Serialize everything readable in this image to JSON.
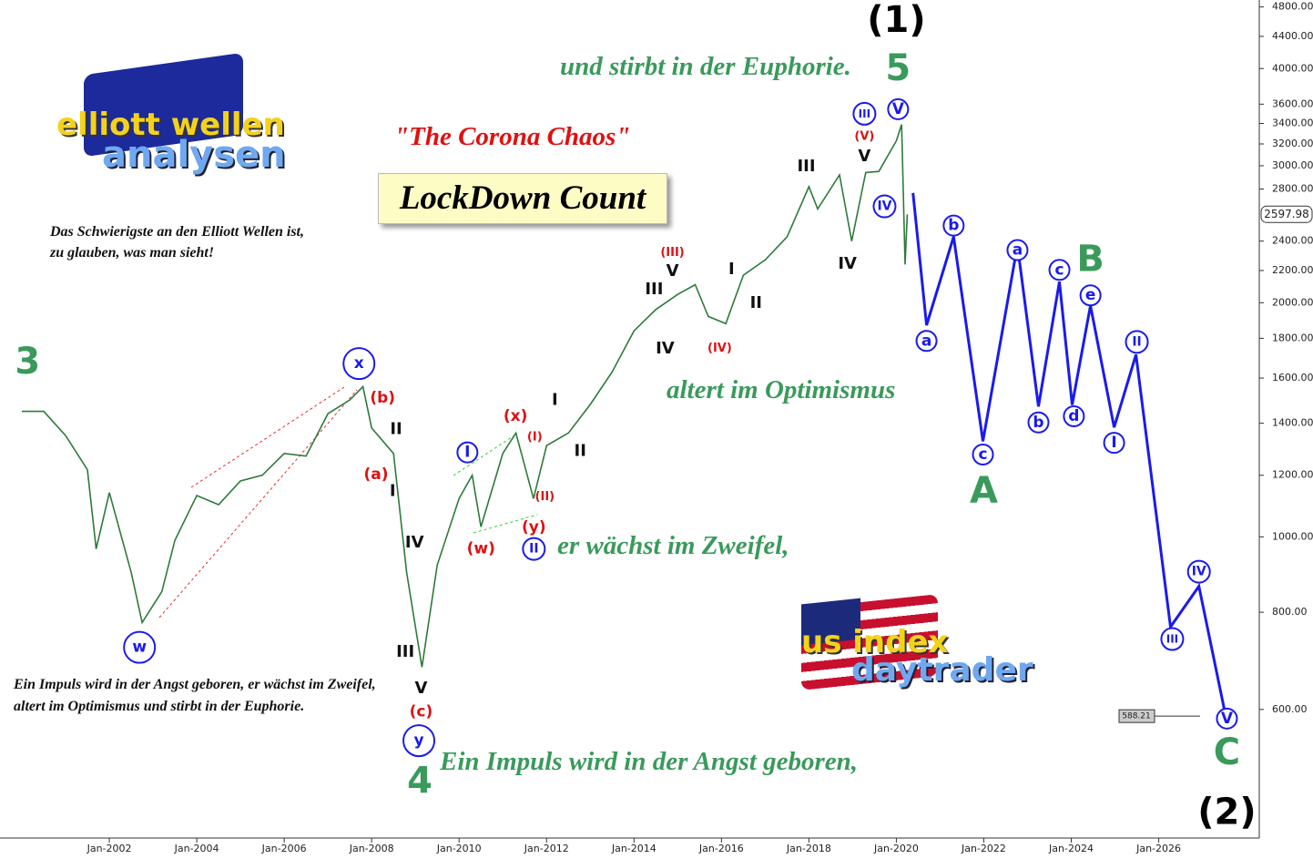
{
  "logos": {
    "left_top": "elliott wellen",
    "left_bottom": "analysen",
    "right_top": "us index",
    "right_bottom": "daytrader"
  },
  "texts": {
    "subtitle": "\"The Corona Chaos\"",
    "title": "LockDown Count",
    "note": "Das Schwierigste an den Elliott Wellen ist, zu glauben, was man sieht!",
    "quote": "Ein Impuls wird in der Angst geboren, er wächst im Zweifel, altert im Optimismus und stirbt in der Euphorie.",
    "phase_1": "Ein Impuls wird in der Angst geboren,",
    "phase_2": "er wächst im Zweifel,",
    "phase_3": "altert im Optimismus",
    "phase_4": "und stirbt in der Euphorie."
  },
  "chart_data": {
    "type": "line",
    "log_scale": true,
    "color": "#2d7a3a",
    "projection_color": "#1a1aee",
    "x": [
      2000.0,
      2000.5,
      2001.0,
      2001.5,
      2001.7,
      2002.0,
      2002.5,
      2002.75,
      2003.2,
      2003.5,
      2004.0,
      2004.5,
      2005.0,
      2005.5,
      2006.0,
      2006.5,
      2007.0,
      2007.5,
      2007.8,
      2008.0,
      2008.5,
      2008.8,
      2009.15,
      2009.5,
      2010.0,
      2010.3,
      2010.5,
      2011.0,
      2011.3,
      2011.7,
      2012.0,
      2012.5,
      2013.0,
      2013.5,
      2014.0,
      2014.5,
      2015.0,
      2015.4,
      2015.7,
      2016.1,
      2016.5,
      2017.0,
      2017.5,
      2018.0,
      2018.2,
      2018.7,
      2018.98,
      2019.3,
      2019.6,
      2020.0,
      2020.12,
      2020.2,
      2020.25
    ],
    "values": [
      1450,
      1450,
      1350,
      1220,
      965,
      1140,
      900,
      776,
      850,
      990,
      1130,
      1100,
      1180,
      1200,
      1280,
      1270,
      1440,
      1500,
      1560,
      1380,
      1280,
      900,
      680,
      920,
      1120,
      1200,
      1030,
      1280,
      1360,
      1120,
      1310,
      1360,
      1480,
      1630,
      1840,
      1960,
      2050,
      2110,
      1920,
      1880,
      2170,
      2270,
      2430,
      2820,
      2640,
      2920,
      2400,
      2940,
      2950,
      3230,
      3390,
      2240,
      2597.98
    ],
    "last_price": 2597.98,
    "target_price": 588.21,
    "projection_x": [
      2020.38,
      2020.69,
      2021.31,
      2021.98,
      2022.77,
      2023.25,
      2023.73,
      2024.02,
      2024.44,
      2024.98,
      2025.48,
      2026.27,
      2026.92,
      2027.52
    ],
    "projection_values": [
      2768,
      1871,
      2431,
      1327,
      2370,
      1471,
      2128,
      1478,
      1983,
      1383,
      1715,
      766,
      864,
      593
    ],
    "xlim": [
      1999.5,
      2028.3
    ],
    "ylim": [
      410,
      4900
    ],
    "xticks": [
      {
        "value": 2002,
        "label": "Jan-2002"
      },
      {
        "value": 2004,
        "label": "Jan-2004"
      },
      {
        "value": 2006,
        "label": "Jan-2006"
      },
      {
        "value": 2008,
        "label": "Jan-2008"
      },
      {
        "value": 2010,
        "label": "Jan-2010"
      },
      {
        "value": 2012,
        "label": "Jan-2012"
      },
      {
        "value": 2014,
        "label": "Jan-2014"
      },
      {
        "value": 2016,
        "label": "Jan-2016"
      },
      {
        "value": 2018,
        "label": "Jan-2018"
      },
      {
        "value": 2020,
        "label": "Jan-2020"
      },
      {
        "value": 2022,
        "label": "Jan-2022"
      },
      {
        "value": 2024,
        "label": "Jan-2024"
      },
      {
        "value": 2026,
        "label": "Jan-2026"
      }
    ],
    "yticks": [
      {
        "value": 600,
        "label": "600.00"
      },
      {
        "value": 800,
        "label": "800.00"
      },
      {
        "value": 1000,
        "label": "1000.00"
      },
      {
        "value": 1200,
        "label": "1200.00"
      },
      {
        "value": 1400,
        "label": "1400.00"
      },
      {
        "value": 1600,
        "label": "1600.00"
      },
      {
        "value": 1800,
        "label": "1800.00"
      },
      {
        "value": 2000,
        "label": "2000.00"
      },
      {
        "value": 2200,
        "label": "2200.00"
      },
      {
        "value": 2400,
        "label": "2400.00"
      },
      {
        "value": 2800,
        "label": "2800.00"
      },
      {
        "value": 3000,
        "label": "3000.00"
      },
      {
        "value": 3200,
        "label": "3200.00"
      },
      {
        "value": 3400,
        "label": "3400.00"
      },
      {
        "value": 3600,
        "label": "3600.00"
      },
      {
        "value": 4000,
        "label": "4000.00"
      },
      {
        "value": 4400,
        "label": "4400.00"
      },
      {
        "value": 4800,
        "label": "4800.00"
      }
    ],
    "annotations": [
      {
        "text": "3",
        "x": 2000.13,
        "y": 1679,
        "style": "green-big"
      },
      {
        "text": "w",
        "x": 2002.69,
        "y": 721,
        "style": "circle"
      },
      {
        "text": "x",
        "x": 2007.71,
        "y": 1670,
        "style": "circle"
      },
      {
        "text": "(b)",
        "x": 2008.25,
        "y": 1508,
        "style": "red"
      },
      {
        "text": "II",
        "x": 2008.56,
        "y": 1376,
        "style": "black"
      },
      {
        "text": "(a)",
        "x": 2008.1,
        "y": 1203,
        "style": "red"
      },
      {
        "text": "I",
        "x": 2008.48,
        "y": 1146,
        "style": "black"
      },
      {
        "text": "IV",
        "x": 2008.98,
        "y": 983,
        "style": "black"
      },
      {
        "text": "III",
        "x": 2008.77,
        "y": 712,
        "style": "black"
      },
      {
        "text": "V",
        "x": 2009.13,
        "y": 639,
        "style": "black"
      },
      {
        "text": "(c)",
        "x": 2009.13,
        "y": 596,
        "style": "red"
      },
      {
        "text": "y",
        "x": 2009.08,
        "y": 547,
        "style": "circle"
      },
      {
        "text": "4",
        "x": 2009.1,
        "y": 485,
        "style": "green-big"
      },
      {
        "text": "I",
        "x": 2010.19,
        "y": 1284,
        "style": "circle"
      },
      {
        "text": "(x)",
        "x": 2011.29,
        "y": 1429,
        "style": "red"
      },
      {
        "text": "(I)",
        "x": 2011.73,
        "y": 1343,
        "style": "red-small"
      },
      {
        "text": "(II)",
        "x": 2011.96,
        "y": 1125,
        "style": "red-small"
      },
      {
        "text": "(y)",
        "x": 2011.71,
        "y": 1029,
        "style": "red"
      },
      {
        "text": "(w)",
        "x": 2010.5,
        "y": 965,
        "style": "red"
      },
      {
        "text": "II",
        "x": 2011.71,
        "y": 965,
        "style": "circle"
      },
      {
        "text": "I",
        "x": 2012.19,
        "y": 1500,
        "style": "black"
      },
      {
        "text": "II",
        "x": 2012.77,
        "y": 1290,
        "style": "black"
      },
      {
        "text": "(III)",
        "x": 2014.88,
        "y": 2318,
        "style": "red-small"
      },
      {
        "text": "V",
        "x": 2014.88,
        "y": 2198,
        "style": "black"
      },
      {
        "text": "III",
        "x": 2014.46,
        "y": 2082,
        "style": "black"
      },
      {
        "text": "IV",
        "x": 2014.71,
        "y": 1748,
        "style": "black"
      },
      {
        "text": "(IV)",
        "x": 2015.96,
        "y": 1748,
        "style": "red-small"
      },
      {
        "text": "I",
        "x": 2016.23,
        "y": 2210,
        "style": "black"
      },
      {
        "text": "II",
        "x": 2016.79,
        "y": 2000,
        "style": "black"
      },
      {
        "text": "III",
        "x": 2017.94,
        "y": 2995,
        "style": "black"
      },
      {
        "text": "V",
        "x": 2019.27,
        "y": 3084,
        "style": "black"
      },
      {
        "text": "IV",
        "x": 2018.88,
        "y": 2245,
        "style": "black"
      },
      {
        "text": "(V)",
        "x": 2019.27,
        "y": 3271,
        "style": "red-small"
      },
      {
        "text": "III",
        "x": 2019.27,
        "y": 3499,
        "style": "circle"
      },
      {
        "text": "IV",
        "x": 2019.73,
        "y": 2660,
        "style": "circle"
      },
      {
        "text": "V",
        "x": 2020.04,
        "y": 3546,
        "style": "circle"
      },
      {
        "text": "5",
        "x": 2020.04,
        "y": 4004,
        "style": "green-big"
      },
      {
        "text": "(1)",
        "x": 2020.0,
        "y": 4620,
        "style": "big-black"
      },
      {
        "text": "a",
        "x": 2020.69,
        "y": 1786,
        "style": "circle"
      },
      {
        "text": "b",
        "x": 2021.31,
        "y": 2513,
        "style": "circle"
      },
      {
        "text": "c",
        "x": 2021.98,
        "y": 1276,
        "style": "circle"
      },
      {
        "text": "A",
        "x": 2022.0,
        "y": 1146,
        "style": "green-big"
      },
      {
        "text": "a",
        "x": 2022.77,
        "y": 2337,
        "style": "circle"
      },
      {
        "text": "b",
        "x": 2023.25,
        "y": 1403,
        "style": "circle"
      },
      {
        "text": "c",
        "x": 2023.73,
        "y": 2204,
        "style": "circle"
      },
      {
        "text": "d",
        "x": 2024.06,
        "y": 1429,
        "style": "circle"
      },
      {
        "text": "B",
        "x": 2024.44,
        "y": 2275,
        "style": "green-big"
      },
      {
        "text": "e",
        "x": 2024.44,
        "y": 2044,
        "style": "circle"
      },
      {
        "text": "I",
        "x": 2024.98,
        "y": 1321,
        "style": "circle"
      },
      {
        "text": "II",
        "x": 2025.5,
        "y": 1781,
        "style": "circle"
      },
      {
        "text": "III",
        "x": 2026.31,
        "y": 739,
        "style": "circle"
      },
      {
        "text": "IV",
        "x": 2026.92,
        "y": 902,
        "style": "circle"
      },
      {
        "text": "V",
        "x": 2027.56,
        "y": 584,
        "style": "circle"
      },
      {
        "text": "C",
        "x": 2027.56,
        "y": 528,
        "style": "green-big"
      },
      {
        "text": "(2)",
        "x": 2027.56,
        "y": 443,
        "style": "big-black"
      }
    ]
  }
}
